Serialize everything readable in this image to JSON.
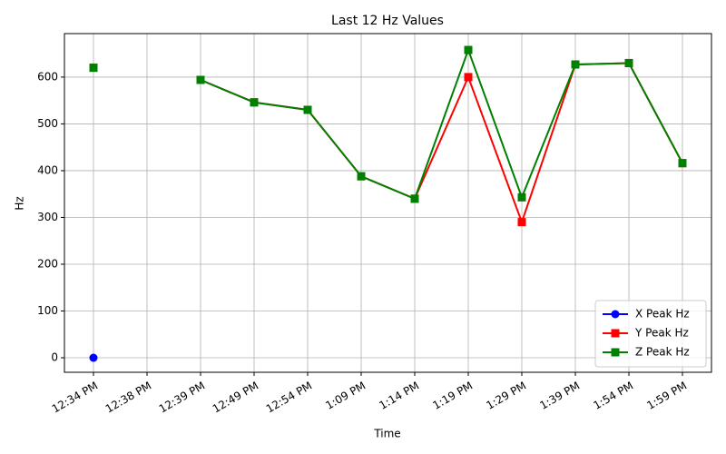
{
  "chart_data": {
    "type": "line",
    "title": "Last 12 Hz Values",
    "x_label": "Time",
    "y_label": "Hz",
    "categories": [
      "12:34 PM",
      "12:38 PM",
      "12:39 PM",
      "12:49 PM",
      "12:54 PM",
      "1:09 PM",
      "1:14 PM",
      "1:19 PM",
      "1:29 PM",
      "1:39 PM",
      "1:54 PM",
      "1:59 PM"
    ],
    "series": [
      {
        "name": "X Peak Hz",
        "color": "#0000ff",
        "marker": "circle",
        "values": [
          0,
          null,
          null,
          null,
          null,
          null,
          null,
          null,
          null,
          null,
          null,
          null
        ]
      },
      {
        "name": "Y Peak Hz",
        "color": "#ff0000",
        "marker": "square",
        "values": [
          620,
          null,
          594,
          546,
          530,
          388,
          340,
          600,
          290,
          627,
          630,
          416
        ]
      },
      {
        "name": "Z Peak Hz",
        "color": "#008000",
        "marker": "square",
        "values": [
          620,
          null,
          594,
          546,
          530,
          388,
          340,
          658,
          343,
          627,
          630,
          416
        ]
      }
    ],
    "ylim": [
      -31,
      693
    ],
    "yticks": [
      0,
      100,
      200,
      300,
      400,
      500,
      600
    ],
    "grid": true,
    "legend": "lower right"
  }
}
